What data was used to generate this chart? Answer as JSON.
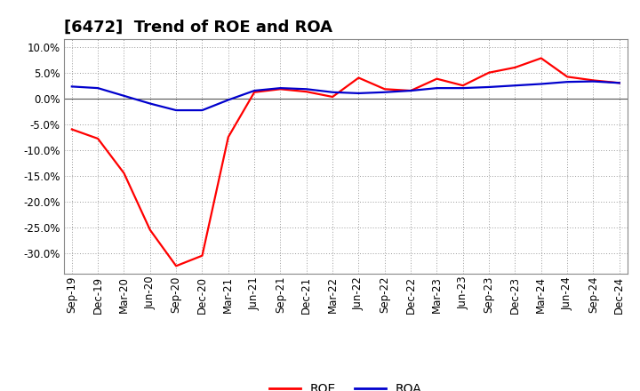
{
  "title": "[6472]  Trend of ROE and ROA",
  "x_labels": [
    "Sep-19",
    "Dec-19",
    "Mar-20",
    "Jun-20",
    "Sep-20",
    "Dec-20",
    "Mar-21",
    "Jun-21",
    "Sep-21",
    "Dec-21",
    "Mar-22",
    "Jun-22",
    "Sep-22",
    "Dec-22",
    "Mar-23",
    "Jun-23",
    "Sep-23",
    "Dec-23",
    "Mar-24",
    "Jun-24",
    "Sep-24",
    "Dec-24"
  ],
  "roe": [
    -6.0,
    -7.8,
    -14.5,
    -25.5,
    -32.5,
    -30.5,
    -7.5,
    1.2,
    1.8,
    1.3,
    0.3,
    4.0,
    1.8,
    1.5,
    3.8,
    2.5,
    5.0,
    6.0,
    7.8,
    4.2,
    3.5,
    3.0
  ],
  "roa": [
    2.3,
    2.0,
    0.5,
    -1.0,
    -2.3,
    -2.3,
    -0.3,
    1.5,
    2.0,
    1.8,
    1.2,
    1.0,
    1.2,
    1.5,
    2.0,
    2.0,
    2.2,
    2.5,
    2.8,
    3.2,
    3.3,
    3.0
  ],
  "roe_color": "#ff0000",
  "roa_color": "#0000cd",
  "background_color": "#ffffff",
  "grid_color": "#999999",
  "ylim_min": -34,
  "ylim_max": 11.5,
  "yticks": [
    10.0,
    5.0,
    0.0,
    -5.0,
    -10.0,
    -15.0,
    -20.0,
    -25.0,
    -30.0
  ],
  "line_width": 1.6,
  "title_fontsize": 13,
  "tick_fontsize": 8.5
}
